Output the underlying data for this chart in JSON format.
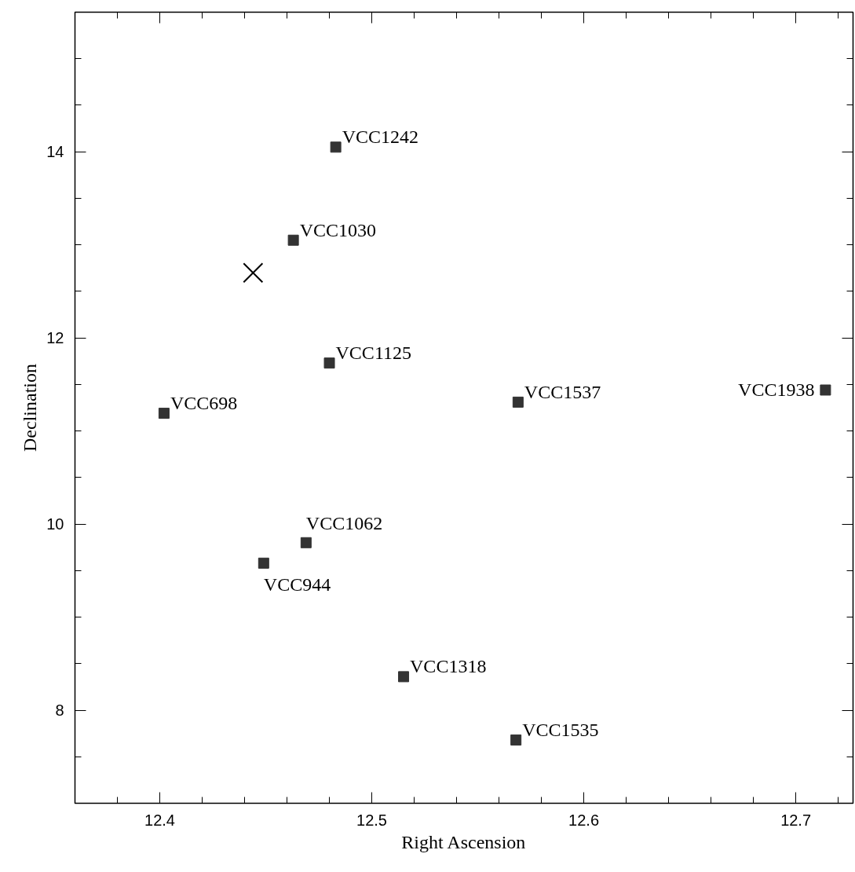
{
  "chart_data": {
    "type": "scatter",
    "xlabel": "Right Ascension",
    "ylabel": "Declination",
    "xlim": [
      12.36,
      12.727
    ],
    "ylim": [
      7.0,
      15.5
    ],
    "xticks": [
      12.4,
      12.5,
      12.6,
      12.7
    ],
    "yticks": [
      8,
      10,
      12,
      14
    ],
    "grid": false,
    "series": [
      {
        "marker": "square",
        "color": "#333333",
        "x": [
          12.483,
          12.463,
          12.48,
          12.402,
          12.469,
          12.449,
          12.515,
          12.569,
          12.714,
          12.568
        ],
        "values": [
          14.05,
          13.05,
          11.73,
          11.19,
          9.8,
          9.58,
          8.36,
          11.31,
          11.44,
          7.68
        ]
      },
      {
        "marker": "cross",
        "color": "#000000",
        "x": [
          12.444
        ],
        "values": [
          12.7
        ]
      }
    ],
    "annotations": [
      {
        "text": "VCC1242",
        "x": 12.483,
        "y": 14.05
      },
      {
        "text": "VCC1030",
        "x": 12.463,
        "y": 13.05
      },
      {
        "text": "VCC1125",
        "x": 12.48,
        "y": 11.73
      },
      {
        "text": "VCC698",
        "x": 12.402,
        "y": 11.19
      },
      {
        "text": "VCC1062",
        "x": 12.469,
        "y": 9.8
      },
      {
        "text": "VCC944",
        "x": 12.449,
        "y": 9.58
      },
      {
        "text": "VCC1318",
        "x": 12.515,
        "y": 8.36
      },
      {
        "text": "VCC1537",
        "x": 12.569,
        "y": 11.31
      },
      {
        "text": "VCC1938",
        "x": 12.714,
        "y": 11.44
      },
      {
        "text": "VCC1535",
        "x": 12.568,
        "y": 7.68
      }
    ]
  }
}
